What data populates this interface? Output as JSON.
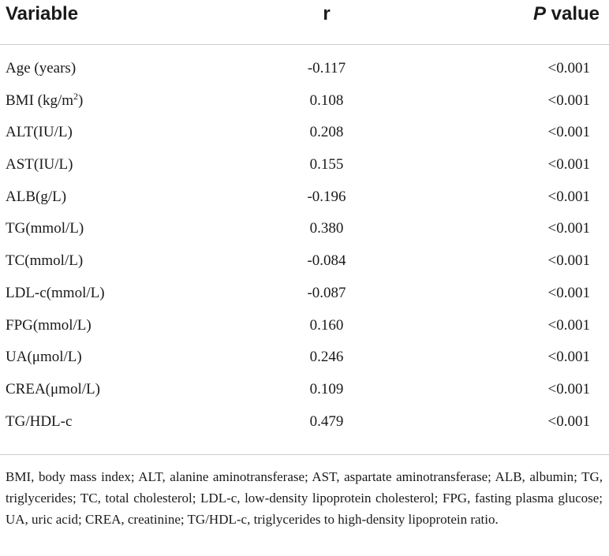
{
  "table": {
    "headers": {
      "variable": "Variable",
      "r": "r",
      "p_value_italic": "P",
      "p_value_rest": " value"
    },
    "rows": [
      {
        "variable": "Age (years)",
        "r": "-0.117",
        "p": "<0.001"
      },
      {
        "variable": "BMI (kg/m",
        "sup": "2",
        "suffix": ")",
        "r": "0.108",
        "p": "<0.001"
      },
      {
        "variable": "ALT(IU/L)",
        "r": "0.208",
        "p": "<0.001"
      },
      {
        "variable": "AST(IU/L)",
        "r": "0.155",
        "p": "<0.001"
      },
      {
        "variable": "ALB(g/L)",
        "r": "-0.196",
        "p": "<0.001"
      },
      {
        "variable": "TG(mmol/L)",
        "r": "0.380",
        "p": "<0.001"
      },
      {
        "variable": "TC(mmol/L)",
        "r": "-0.084",
        "p": "<0.001"
      },
      {
        "variable": "LDL-c(mmol/L)",
        "r": "-0.087",
        "p": "<0.001"
      },
      {
        "variable": "FPG(mmol/L)",
        "r": "0.160",
        "p": "<0.001"
      },
      {
        "variable": "UA(μmol/L)",
        "r": "0.246",
        "p": "<0.001"
      },
      {
        "variable": "CREA(μmol/L)",
        "r": "0.109",
        "p": "<0.001"
      },
      {
        "variable": "TG/HDL-c",
        "r": "0.479",
        "p": "<0.001"
      }
    ],
    "footnote": "BMI, body mass index; ALT, alanine aminotransferase; AST, aspartate aminotransferase; ALB, albumin; TG, triglycerides; TC, total cholesterol; LDL-c, low-density lipoprotein cholesterol; FPG, fasting plasma glucose; UA, uric acid; CREA, creatinine; TG/HDL-c, triglycerides to high-density lipoprotein ratio."
  }
}
